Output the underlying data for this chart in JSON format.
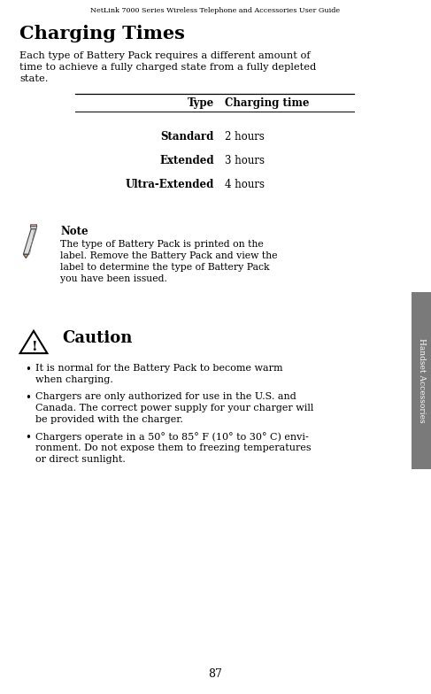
{
  "bg_color": "#ffffff",
  "header_text": "NetLink 7000 Series Wireless Telephone and Accessories User Guide",
  "title": "Charging Times",
  "intro_line1": "Each type of Battery Pack requires a different amount of",
  "intro_line2": "time to achieve a fully charged state from a fully depleted",
  "intro_line3": "state.",
  "table_col1_header": "Type",
  "table_col2_header": "Charging time",
  "table_rows": [
    [
      "Standard",
      "2 hours"
    ],
    [
      "Extended",
      "3 hours"
    ],
    [
      "Ultra-Extended",
      "4 hours"
    ]
  ],
  "note_title": "Note",
  "note_lines": [
    "The type of Battery Pack is printed on the",
    "label. Remove the Battery Pack and view the",
    "label to determine the type of Battery Pack",
    "you have been issued."
  ],
  "caution_title": "Caution",
  "bullet1_lines": [
    "It is normal for the Battery Pack to become warm",
    "when charging."
  ],
  "bullet2_lines": [
    "Chargers are only authorized for use in the U.S. and",
    "Canada. The correct power supply for your charger will",
    "be provided with the charger."
  ],
  "bullet3_lines": [
    "Chargers operate in a 50° to 85° F (10° to 30° C) envi-",
    "ronment. Do not expose them to freezing temperatures",
    "or direct sunlight."
  ],
  "sidebar_text": "Handset Accessories",
  "page_number": "87",
  "text_color": "#000000",
  "sidebar_bg": "#7a7a7a",
  "sidebar_text_color": "#ffffff"
}
